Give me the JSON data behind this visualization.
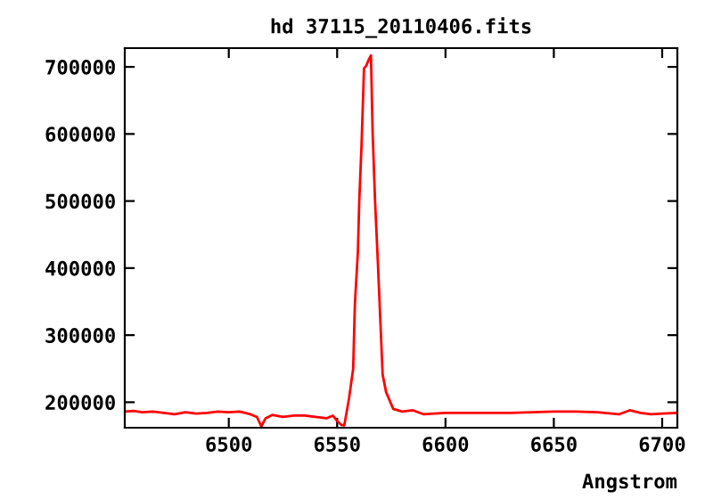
{
  "chart_data": {
    "type": "line",
    "title": "hd 37115_20110406.fits",
    "xlabel": "Angstrom",
    "xlim": [
      6452,
      6707
    ],
    "ylim": [
      162000,
      728000
    ],
    "xticks": [
      6500,
      6550,
      6600,
      6650,
      6700
    ],
    "yticks": [
      200000,
      300000,
      400000,
      500000,
      600000,
      700000
    ],
    "grid": false,
    "legend": false,
    "series": [
      {
        "color": "#ff0000",
        "x": [
          6452,
          6456,
          6460,
          6465,
          6470,
          6475,
          6480,
          6485,
          6490,
          6495,
          6500,
          6505,
          6510,
          6513,
          6515,
          6517,
          6520,
          6525,
          6530,
          6535,
          6540,
          6545,
          6548,
          6550,
          6552,
          6553.3,
          6555.5,
          6557.4,
          6558.2,
          6559.6,
          6560.2,
          6561.3,
          6562.4,
          6563.5,
          6564.6,
          6565.6,
          6566.4,
          6567.5,
          6568.8,
          6569.6,
          6571,
          6572.6,
          6575.9,
          6580,
          6585,
          6590,
          6600,
          6610,
          6620,
          6630,
          6640,
          6650,
          6660,
          6670,
          6680,
          6685,
          6690,
          6695,
          6700,
          6707
        ],
        "values": [
          186000,
          187000,
          185000,
          186000,
          184000,
          182000,
          185000,
          183000,
          184000,
          186000,
          185000,
          186000,
          182000,
          178000,
          164000,
          176000,
          181000,
          178000,
          180000,
          180000,
          178000,
          176000,
          180000,
          172000,
          166000,
          165500,
          206000,
          250000,
          347000,
          426000,
          499000,
          587000,
          698000,
          702000,
          711000,
          717000,
          600000,
          500000,
          408000,
          347000,
          241000,
          215000,
          190000,
          186000,
          188000,
          182000,
          184000,
          184000,
          184000,
          184000,
          185000,
          186000,
          186000,
          185000,
          182000,
          188000,
          184000,
          182000,
          183000,
          184000
        ]
      }
    ]
  }
}
